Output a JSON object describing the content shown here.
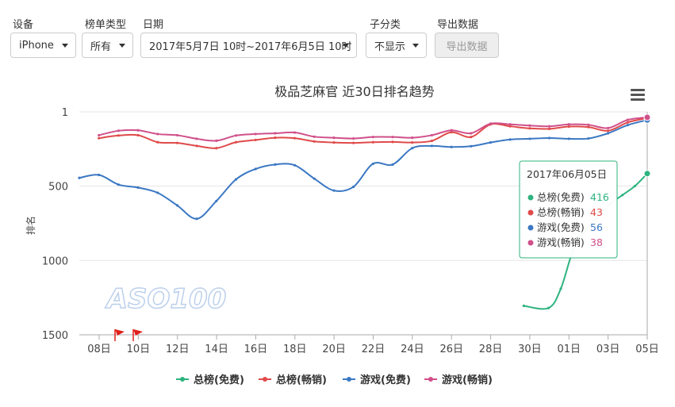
{
  "filters": {
    "device": {
      "label": "设备",
      "value": "iPhone"
    },
    "list_type": {
      "label": "榜单类型",
      "value": "所有"
    },
    "date": {
      "label": "日期",
      "value": "2017年5月7日 10时~2017年6月5日 10时"
    },
    "subcategory": {
      "label": "子分类",
      "value": "不显示"
    },
    "export": {
      "label": "导出数据",
      "button": "导出数据"
    }
  },
  "colors": {
    "free_total": "#2db37f",
    "paid_total": "#e04a4a",
    "free_game": "#3b78c3",
    "paid_game": "#d0508a"
  },
  "chart_data": {
    "type": "line",
    "title": "极品芝麻官 近30日排名趋势",
    "ylabel": "排名",
    "y_reversed": true,
    "ylim": [
      1,
      1500
    ],
    "yticks": [
      "1",
      "500",
      "1000",
      "1500"
    ],
    "xticks": [
      "08日",
      "10日",
      "12日",
      "14日",
      "16日",
      "18日",
      "20日",
      "22日",
      "24日",
      "26日",
      "28日",
      "30日",
      "01日",
      "03日",
      "05日"
    ],
    "watermark": "ASO100",
    "series": [
      {
        "name": "总榜(免费)",
        "color": "#2db37f",
        "values": [
          null,
          null,
          null,
          null,
          null,
          null,
          null,
          null,
          null,
          null,
          null,
          null,
          null,
          null,
          null,
          null,
          null,
          null,
          null,
          null,
          null,
          null,
          null,
          null,
          null,
          null,
          null,
          null,
          null,
          null,
          null,
          null,
          null,
          null,
          null,
          null,
          1305,
          null,
          1320,
          1190,
          930,
          800,
          710,
          620,
          560,
          500,
          416
        ]
      },
      {
        "name": "总榜(畅销)",
        "color": "#e04a4a",
        "values": [
          178,
          160,
          158,
          205,
          210,
          230,
          245,
          205,
          190,
          175,
          178,
          200,
          207,
          210,
          205,
          203,
          207,
          196,
          138,
          170,
          85,
          98,
          112,
          115,
          100,
          103,
          128,
          72,
          43
        ]
      },
      {
        "name": "游戏(免费)",
        "color": "#3b78c3",
        "values": [
          445,
          425,
          490,
          510,
          545,
          630,
          720,
          600,
          455,
          385,
          355,
          360,
          450,
          530,
          505,
          350,
          355,
          245,
          230,
          237,
          232,
          207,
          187,
          182,
          177,
          182,
          180,
          145,
          90,
          56
        ]
      },
      {
        "name": "游戏(畅销)",
        "color": "#d0508a",
        "values": [
          158,
          128,
          125,
          150,
          158,
          182,
          195,
          160,
          150,
          145,
          140,
          168,
          175,
          180,
          170,
          170,
          175,
          158,
          125,
          145,
          80,
          85,
          93,
          98,
          85,
          88,
          110,
          55,
          38
        ]
      }
    ],
    "tooltip": {
      "date": "2017年06月05日",
      "rows": [
        {
          "name": "总榜(免费)",
          "value": "416",
          "color": "#2db37f"
        },
        {
          "name": "总榜(畅销)",
          "value": "43",
          "color": "#e04a4a"
        },
        {
          "name": "游戏(免费)",
          "value": "56",
          "color": "#3b78c3"
        },
        {
          "name": "游戏(畅销)",
          "value": "38",
          "color": "#d0508a"
        }
      ]
    }
  }
}
